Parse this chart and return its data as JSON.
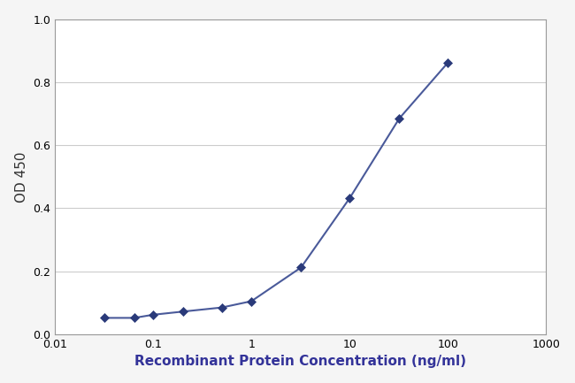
{
  "x": [
    0.032,
    0.064,
    0.1,
    0.2,
    0.5,
    1.0,
    3.2,
    10.0,
    32.0,
    100.0
  ],
  "y": [
    0.052,
    0.052,
    0.062,
    0.072,
    0.085,
    0.105,
    0.212,
    0.432,
    0.685,
    0.862
  ],
  "line_color": "#4a5a9a",
  "marker_color": "#2a3a7a",
  "xlabel": "Recombinant Protein Concentration (ng/ml)",
  "ylabel": "OD 450",
  "xlim_log": [
    0.01,
    1000
  ],
  "ylim": [
    0.0,
    1.0
  ],
  "yticks": [
    0.0,
    0.2,
    0.4,
    0.6,
    0.8,
    1.0
  ],
  "background_color": "#f5f5f5",
  "plot_bg_color": "#ffffff",
  "grid_color": "#cccccc",
  "xlabel_fontsize": 11,
  "ylabel_fontsize": 11,
  "tick_fontsize": 9,
  "marker_size": 5,
  "line_width": 1.5
}
